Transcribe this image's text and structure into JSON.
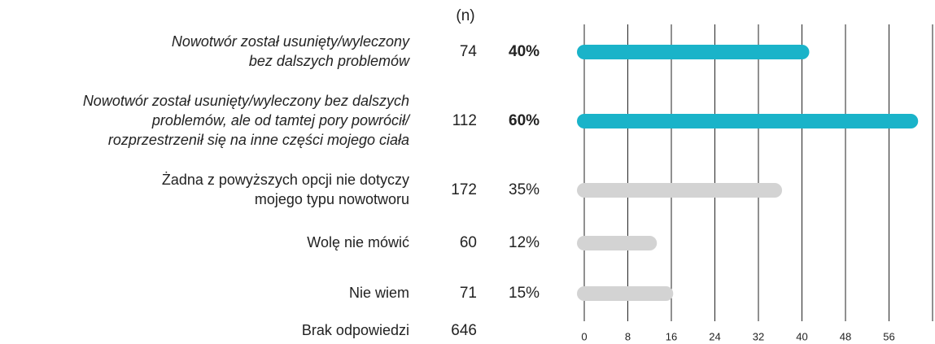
{
  "chart_data": {
    "type": "bar",
    "orientation": "horizontal",
    "n_label": "(n)",
    "categories": [
      [
        "Nowotwór został usunięty/wyleczony",
        "bez dalszych problemów"
      ],
      [
        "Nowotwór został usunięty/wyleczony bez dalszych",
        "problemów, ale od tamtej pory powrócił/",
        "rozprzestrzenił się na inne części mojego ciała"
      ],
      [
        "Żadna z powyższych opcji nie dotyczy",
        "mojego typu nowotworu"
      ],
      [
        "Wolę nie mówić"
      ],
      [
        "Nie wiem"
      ],
      [
        "Brak odpowiedzi"
      ]
    ],
    "n": [
      74,
      112,
      172,
      60,
      71,
      646
    ],
    "values": [
      40,
      60,
      35,
      12,
      15,
      null
    ],
    "value_labels": [
      "40%",
      "60%",
      "35%",
      "12%",
      "15%",
      null
    ],
    "highlighted": [
      true,
      true,
      false,
      false,
      false,
      false
    ],
    "highlight_color": "#1ab3c9",
    "color": "#d3d3d3",
    "xlim": [
      0,
      64
    ],
    "xticks": [
      0,
      8,
      16,
      24,
      32,
      40,
      48,
      56
    ],
    "grid": true
  }
}
